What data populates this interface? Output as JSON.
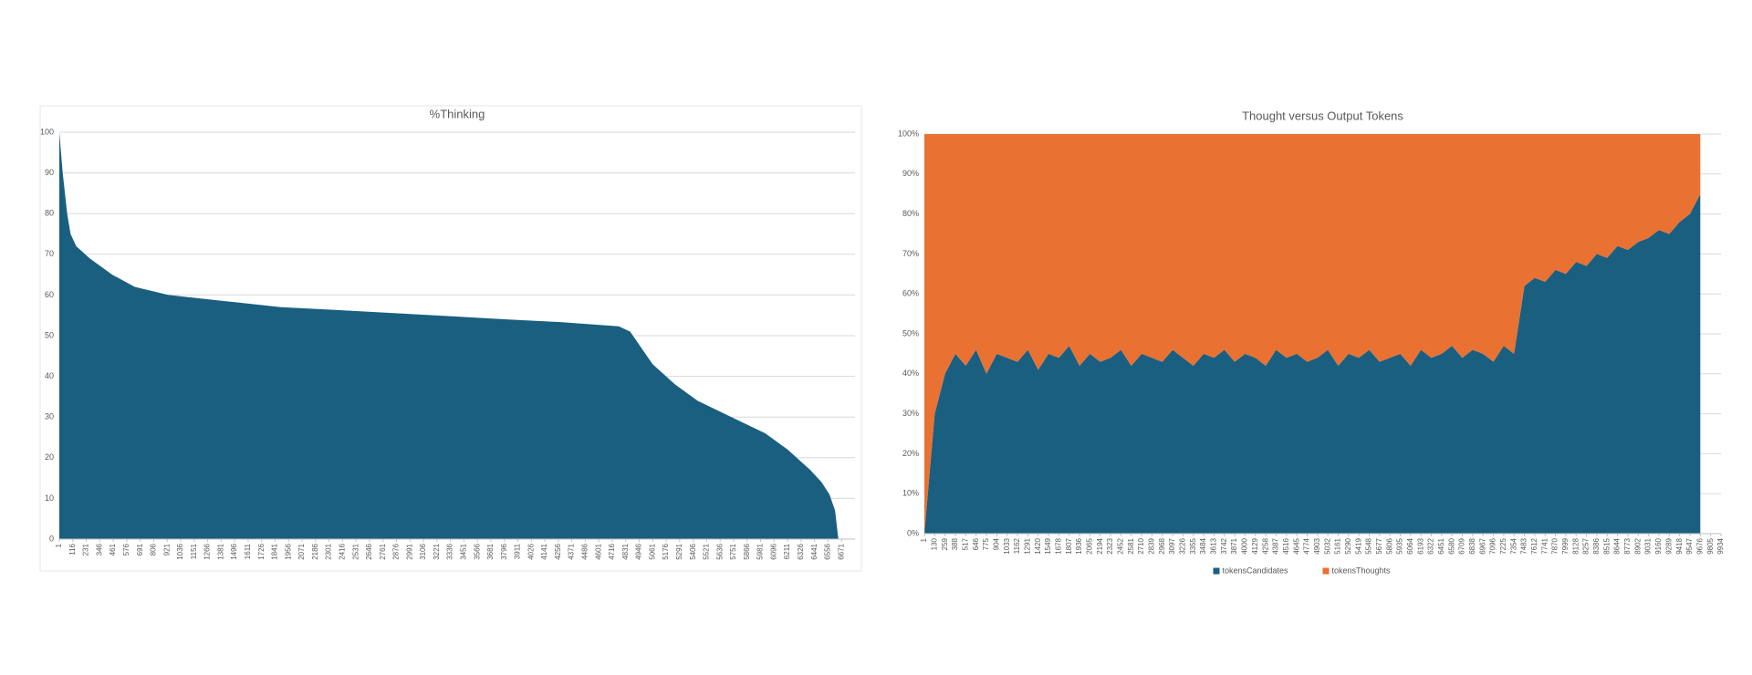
{
  "chart_data": [
    {
      "type": "area",
      "title": "%Thinking",
      "color": "#1a5f80",
      "grid": true,
      "x": [
        1,
        30,
        68,
        97,
        145,
        260,
        452,
        644,
        932,
        1412,
        1892,
        2372,
        3332,
        3812,
        4292,
        4772,
        4868,
        4964,
        5060,
        5252,
        5444,
        5732,
        6020,
        6212,
        6404,
        6500,
        6568,
        6616,
        6644
      ],
      "values": [
        100,
        90,
        80,
        75,
        72,
        69,
        65,
        62,
        60,
        58.5,
        57,
        56.3,
        54.8,
        54,
        53.3,
        52.3,
        51,
        47,
        43,
        38,
        34,
        30,
        26,
        22,
        17,
        14,
        11,
        7,
        0
      ],
      "xlim": [
        1,
        6786
      ],
      "xticks": [
        1,
        116,
        231,
        346,
        461,
        576,
        691,
        806,
        921,
        1036,
        1151,
        1266,
        1381,
        1496,
        1611,
        1726,
        1841,
        1956,
        2071,
        2186,
        2301,
        2416,
        2531,
        2646,
        2761,
        2876,
        2991,
        3106,
        3221,
        3336,
        3451,
        3566,
        3681,
        3796,
        3911,
        4026,
        4141,
        4256,
        4371,
        4486,
        4601,
        4716,
        4831,
        4946,
        5061,
        5176,
        5291,
        5406,
        5521,
        5636,
        5751,
        5866,
        5981,
        6096,
        6211,
        6326,
        6441,
        6556,
        6671
      ],
      "ylim": [
        0,
        100
      ],
      "yticks": [
        0,
        10,
        20,
        30,
        40,
        50,
        60,
        70,
        80,
        90,
        100
      ]
    },
    {
      "type": "stacked_area",
      "title": "Thought versus Output Tokens",
      "grid": true,
      "legend": "bottom",
      "x": [
        1,
        130,
        259,
        388,
        517,
        646,
        775,
        904,
        1033,
        1162,
        1291,
        1420,
        1549,
        1678,
        1807,
        1936,
        2065,
        2194,
        2323,
        2452,
        2581,
        2710,
        2839,
        2968,
        3097,
        3226,
        3355,
        3484,
        3613,
        3742,
        3871,
        4000,
        4129,
        4258,
        4387,
        4516,
        4645,
        4774,
        4903,
        5032,
        5161,
        5290,
        5419,
        5548,
        5677,
        5806,
        5935,
        6064,
        6193,
        6322,
        6451,
        6580,
        6709,
        6838,
        6967,
        7096,
        7225,
        7354,
        7483,
        7612,
        7741,
        7870,
        7999,
        8128,
        8257,
        8386,
        8515,
        8644,
        8773,
        8902,
        9031,
        9160,
        9289,
        9418,
        9547,
        9676
      ],
      "series": [
        {
          "name": "tokensCandidates",
          "color": "#1a5f80",
          "values": [
            0,
            30,
            40,
            45,
            42,
            46,
            40,
            45,
            44,
            43,
            46,
            41,
            45,
            44,
            47,
            42,
            45,
            43,
            44,
            46,
            42,
            45,
            44,
            43,
            46,
            44,
            42,
            45,
            44,
            46,
            43,
            45,
            44,
            42,
            46,
            44,
            45,
            43,
            44,
            46,
            42,
            45,
            44,
            46,
            43,
            44,
            45,
            42,
            46,
            44,
            45,
            47,
            44,
            46,
            45,
            43,
            47,
            45,
            62,
            64,
            63,
            66,
            65,
            68,
            67,
            70,
            69,
            72,
            71,
            73,
            74,
            76,
            75,
            78,
            80,
            85
          ]
        },
        {
          "name": "tokensThoughts",
          "color": "#e97132",
          "values": [
            100,
            70,
            60,
            55,
            58,
            54,
            60,
            55,
            56,
            57,
            54,
            59,
            55,
            56,
            53,
            58,
            55,
            57,
            56,
            54,
            58,
            55,
            56,
            57,
            54,
            56,
            58,
            55,
            56,
            54,
            57,
            55,
            56,
            58,
            54,
            56,
            55,
            57,
            56,
            54,
            58,
            55,
            56,
            54,
            57,
            56,
            55,
            58,
            54,
            56,
            55,
            53,
            56,
            54,
            55,
            57,
            53,
            55,
            38,
            36,
            37,
            34,
            35,
            32,
            33,
            30,
            31,
            28,
            29,
            27,
            26,
            24,
            25,
            22,
            20,
            15
          ]
        }
      ],
      "xlim": [
        1,
        9934
      ],
      "xticks": [
        1,
        130,
        259,
        388,
        517,
        646,
        775,
        904,
        1033,
        1162,
        1291,
        1420,
        1549,
        1678,
        1807,
        1936,
        2065,
        2194,
        2323,
        2452,
        2581,
        2710,
        2839,
        2968,
        3097,
        3226,
        3355,
        3484,
        3613,
        3742,
        3871,
        4000,
        4129,
        4258,
        4387,
        4516,
        4645,
        4774,
        4903,
        5032,
        5161,
        5290,
        5419,
        5548,
        5677,
        5806,
        5935,
        6064,
        6193,
        6322,
        6451,
        6580,
        6709,
        6838,
        6967,
        7096,
        7225,
        7354,
        7483,
        7612,
        7741,
        7870,
        7999,
        8128,
        8257,
        8386,
        8515,
        8644,
        8773,
        8902,
        9031,
        9160,
        9289,
        9418,
        9547,
        9676,
        9805,
        9934
      ],
      "ylim": [
        0,
        100
      ],
      "yticks": [
        {
          "value": 0,
          "label": "0%"
        },
        {
          "value": 10,
          "label": "10%"
        },
        {
          "value": 20,
          "label": "20%"
        },
        {
          "value": 30,
          "label": "30%"
        },
        {
          "value": 40,
          "label": "40%"
        },
        {
          "value": 50,
          "label": "50%"
        },
        {
          "value": 60,
          "label": "60%"
        },
        {
          "value": 70,
          "label": "70%"
        },
        {
          "value": 80,
          "label": "80%"
        },
        {
          "value": 90,
          "label": "90%"
        },
        {
          "value": 100,
          "label": "100%"
        }
      ]
    }
  ]
}
